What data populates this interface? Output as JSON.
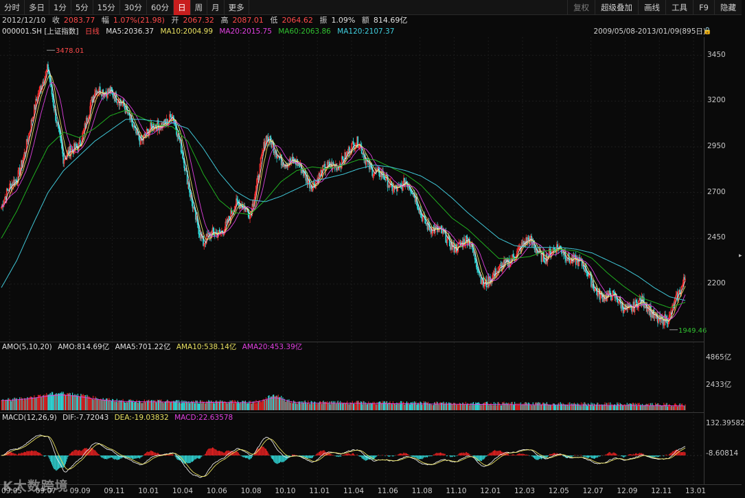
{
  "toolbar": {
    "left_tabs": [
      "分时",
      "多日",
      "1分",
      "5分",
      "15分",
      "30分",
      "60分",
      "日",
      "周",
      "月",
      "更多"
    ],
    "active_tab": "日",
    "right_tabs": [
      "复权",
      "超级叠加",
      "画线",
      "工具",
      "F9",
      "隐藏"
    ]
  },
  "quote": {
    "date": "2012/12/10",
    "close_label": "收",
    "close": "2083.77",
    "change_label": "幅",
    "change": "1.07%(21.98)",
    "open_label": "开",
    "open": "2067.32",
    "high_label": "高",
    "high": "2087.01",
    "low_label": "低",
    "low": "2064.62",
    "amp_label": "振",
    "amp": "1.09%",
    "amount_label": "额",
    "amount": "814.69亿"
  },
  "ma": {
    "symbol": "000001.SH [上证指数]",
    "period": "日线",
    "ma5": "MA5:2036.37",
    "ma10": "MA10:2004.99",
    "ma20": "MA20:2015.75",
    "ma60": "MA60:2063.86",
    "ma120": "MA120:2107.37"
  },
  "range": "2009/05/08-2013/01/09(895日)",
  "amo": {
    "name": "AMO(5,10,20)",
    "amo": "AMO:814.69亿",
    "ama5": "AMA5:701.22亿",
    "ama10": "AMA10:538.14亿",
    "ama20": "AMA20:453.39亿"
  },
  "macd": {
    "name": "MACD(12,26,9)",
    "dif": "DIF:-7.72043",
    "dea": "DEA:-19.03832",
    "macd": "MACD:22.63578"
  },
  "watermark": "大数跨境",
  "chart_data": {
    "type": "line",
    "title": "",
    "price_axis": {
      "ticks": [
        2200,
        2450,
        2700,
        2950,
        3200,
        3450
      ],
      "ylim": [
        1900,
        3520
      ]
    },
    "volume_axis": {
      "ticks": [
        "4865亿",
        "2433亿"
      ]
    },
    "macd_axis": {
      "ticks": [
        "132.39582",
        "-8.60814"
      ]
    },
    "x_ticks": [
      "09.05",
      "09.07",
      "09.09",
      "09.11",
      "10.01",
      "10.04",
      "10.06",
      "10.08",
      "10.10",
      "11.01",
      "11.04",
      "11.06",
      "11.08",
      "11.10",
      "12.01",
      "12.03",
      "12.05",
      "12.07",
      "12.09",
      "12.11",
      "13.01"
    ],
    "annotations": [
      {
        "label": "3478.01",
        "x": "09.08",
        "y": 3478.01
      },
      {
        "label": "1949.46",
        "x": "12.12",
        "y": 1949.46
      }
    ],
    "price_series": {
      "x": [
        "09.05",
        "09.06",
        "09.07",
        "09.08",
        "09.09",
        "09.10",
        "09.11",
        "09.12",
        "10.01",
        "10.02",
        "10.03",
        "10.04",
        "10.05",
        "10.06",
        "10.07",
        "10.08",
        "10.09",
        "10.10",
        "10.11",
        "10.12",
        "11.01",
        "11.02",
        "11.03",
        "11.04",
        "11.05",
        "11.06",
        "11.07",
        "11.08",
        "11.09",
        "11.10",
        "11.11",
        "11.12",
        "12.01",
        "12.02",
        "12.03",
        "12.04",
        "12.05",
        "12.06",
        "12.07",
        "12.08",
        "12.09",
        "12.10",
        "12.11",
        "12.12",
        "13.01"
      ],
      "close": [
        2620,
        2780,
        3100,
        3400,
        2860,
        2980,
        3230,
        3280,
        3130,
        3000,
        3050,
        3140,
        2750,
        2420,
        2480,
        2620,
        2600,
        2980,
        2900,
        2840,
        2760,
        2820,
        2900,
        2960,
        2820,
        2730,
        2760,
        2590,
        2480,
        2420,
        2430,
        2220,
        2250,
        2380,
        2420,
        2360,
        2380,
        2340,
        2200,
        2130,
        2080,
        2090,
        2040,
        1990,
        2260
      ]
    },
    "series": [
      {
        "name": "MA60",
        "values": [
          2450,
          2600,
          2780,
          2950,
          3030,
          3000,
          3050,
          3120,
          3150,
          3110,
          3070,
          3060,
          2980,
          2800,
          2660,
          2590,
          2580,
          2660,
          2760,
          2820,
          2840,
          2830,
          2850,
          2880,
          2880,
          2840,
          2800,
          2740,
          2650,
          2560,
          2500,
          2420,
          2340,
          2340,
          2350,
          2380,
          2390,
          2380,
          2340,
          2260,
          2190,
          2130,
          2100,
          2070,
          2100
        ]
      },
      {
        "name": "MA120",
        "values": [
          2180,
          2330,
          2520,
          2700,
          2820,
          2900,
          2980,
          3040,
          3100,
          3100,
          3090,
          3080,
          3050,
          2940,
          2810,
          2710,
          2660,
          2650,
          2680,
          2720,
          2760,
          2780,
          2800,
          2830,
          2850,
          2840,
          2820,
          2790,
          2740,
          2670,
          2590,
          2520,
          2450,
          2410,
          2400,
          2400,
          2400,
          2390,
          2370,
          2330,
          2290,
          2240,
          2180,
          2130,
          2110
        ]
      }
    ]
  }
}
